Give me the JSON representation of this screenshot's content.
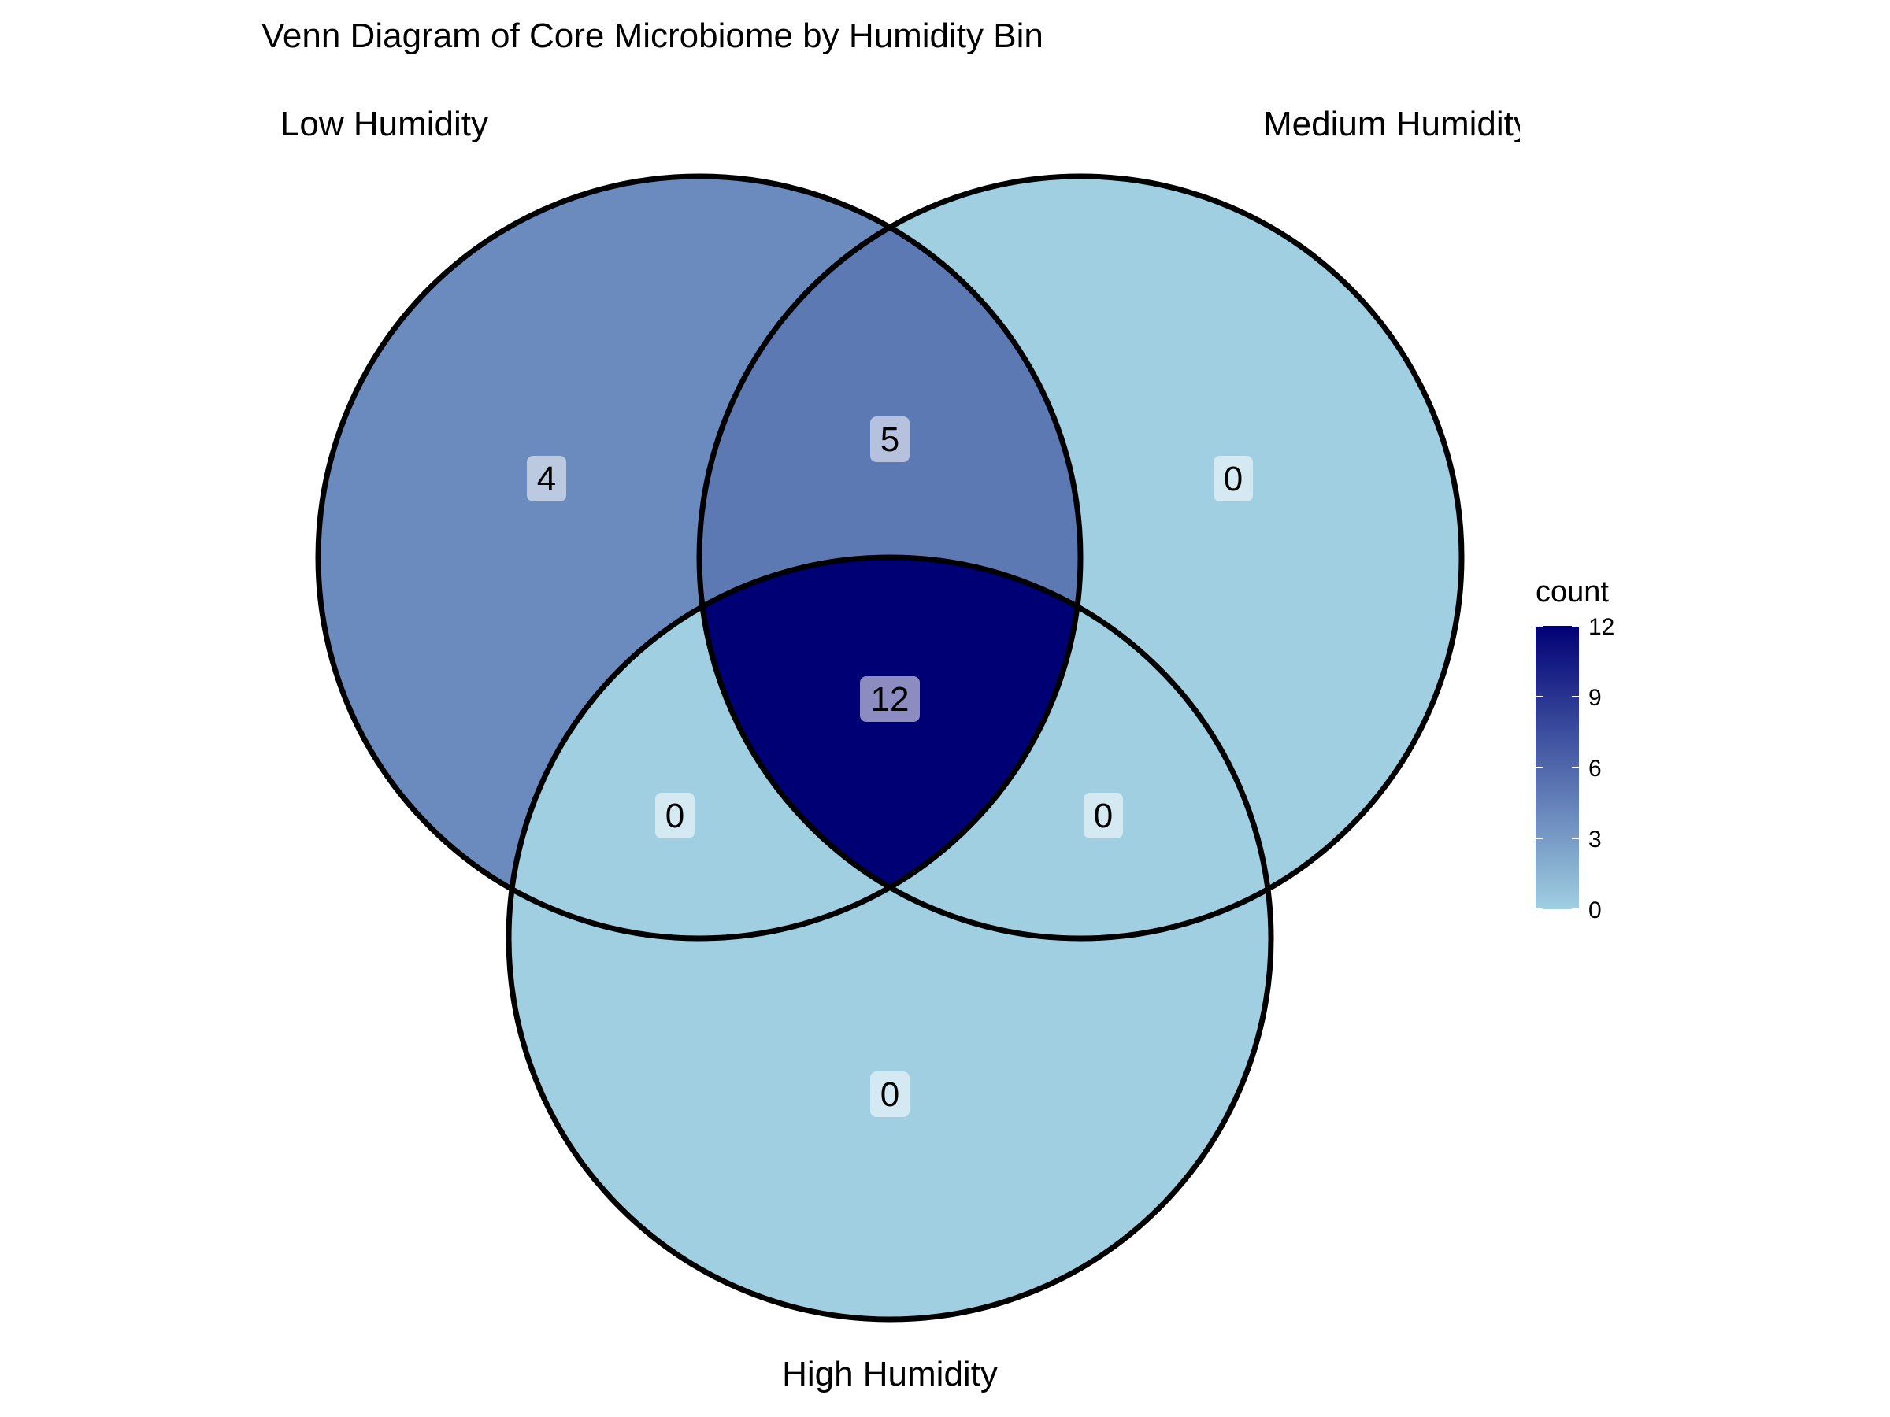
{
  "title": "Venn Diagram of Core Microbiome by Humidity Bin",
  "sets": [
    {
      "id": "low",
      "label": "Low Humidity"
    },
    {
      "id": "medium",
      "label": "Medium Humidity"
    },
    {
      "id": "high",
      "label": "High Humidity"
    }
  ],
  "regions": [
    {
      "id": "low_only",
      "sets": [
        "low"
      ],
      "count": 4
    },
    {
      "id": "medium_only",
      "sets": [
        "medium"
      ],
      "count": 0
    },
    {
      "id": "high_only",
      "sets": [
        "high"
      ],
      "count": 0
    },
    {
      "id": "low_medium",
      "sets": [
        "low",
        "medium"
      ],
      "count": 5
    },
    {
      "id": "low_high",
      "sets": [
        "low",
        "high"
      ],
      "count": 0
    },
    {
      "id": "medium_high",
      "sets": [
        "medium",
        "high"
      ],
      "count": 0
    },
    {
      "id": "all_three",
      "sets": [
        "low",
        "medium",
        "high"
      ],
      "count": 12
    }
  ],
  "legend": {
    "title": "count",
    "ticks": [
      0,
      3,
      6,
      9,
      12
    ],
    "min": 0,
    "max": 12,
    "low_color": "#a0cfe1",
    "high_color": "#000075"
  },
  "colors": {
    "outline": "#000000",
    "label_box": "#ffffff"
  }
}
